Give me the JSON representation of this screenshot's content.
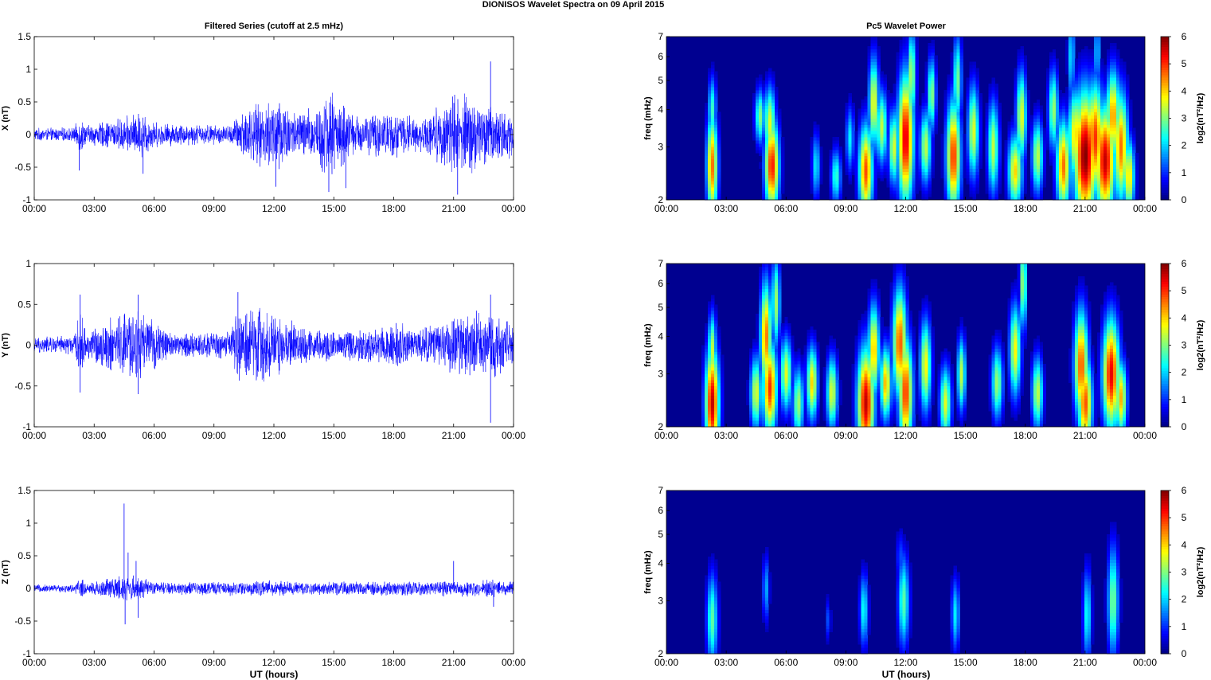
{
  "title": "DIONISOS Wavelet Spectra on 09 April     2015",
  "left_title": "Filtered Series (cutoff at 2.5 mHz)",
  "right_title": "Pc5 Wavelet Power",
  "xlabel": "UT (hours)",
  "colors": {
    "trace": "#0000ff",
    "spectrum_background": "#000090"
  },
  "chart_data": [
    {
      "type": "line",
      "series": [
        {
          "name": "X",
          "values": []
        }
      ],
      "ylabel": "X (nT)",
      "ylim": [
        -1,
        1.5
      ],
      "yticks": [
        "-1",
        "-0.5",
        "0",
        "0.5",
        "1",
        "1.5"
      ],
      "xlim": [
        0,
        24
      ],
      "xticks": [
        "00:00",
        "03:00",
        "06:00",
        "09:00",
        "12:00",
        "15:00",
        "18:00",
        "21:00",
        "00:00"
      ],
      "activity_envelope": [
        [
          0.0,
          0.08
        ],
        [
          2.0,
          0.09
        ],
        [
          2.3,
          0.25
        ],
        [
          2.6,
          0.12
        ],
        [
          4.5,
          0.22
        ],
        [
          5.4,
          0.3
        ],
        [
          6.2,
          0.15
        ],
        [
          9.8,
          0.12
        ],
        [
          10.5,
          0.35
        ],
        [
          11.5,
          0.4
        ],
        [
          12.2,
          0.55
        ],
        [
          13.0,
          0.3
        ],
        [
          14.0,
          0.35
        ],
        [
          14.8,
          0.6
        ],
        [
          16.0,
          0.25
        ],
        [
          18.0,
          0.3
        ],
        [
          19.5,
          0.2
        ],
        [
          21.0,
          0.55
        ],
        [
          22.0,
          0.5
        ],
        [
          23.0,
          0.35
        ],
        [
          24.0,
          0.3
        ]
      ],
      "spikes": [
        [
          2.25,
          -0.55
        ],
        [
          5.45,
          -0.6
        ],
        [
          12.1,
          -0.8
        ],
        [
          14.75,
          -0.88
        ],
        [
          15.6,
          -0.82
        ],
        [
          22.85,
          1.12
        ],
        [
          21.2,
          -0.92
        ]
      ]
    },
    {
      "type": "line",
      "series": [
        {
          "name": "Y",
          "values": []
        }
      ],
      "ylabel": "Y (nT)",
      "ylim": [
        -1,
        1
      ],
      "yticks": [
        "-1",
        "-0.5",
        "0",
        "0.5",
        "1"
      ],
      "xlim": [
        0,
        24
      ],
      "xticks": [
        "00:00",
        "03:00",
        "06:00",
        "09:00",
        "12:00",
        "15:00",
        "18:00",
        "21:00",
        "00:00"
      ],
      "activity_envelope": [
        [
          0.0,
          0.08
        ],
        [
          2.0,
          0.1
        ],
        [
          2.3,
          0.35
        ],
        [
          2.6,
          0.15
        ],
        [
          4.0,
          0.3
        ],
        [
          5.0,
          0.4
        ],
        [
          6.0,
          0.25
        ],
        [
          7.0,
          0.12
        ],
        [
          9.8,
          0.15
        ],
        [
          10.3,
          0.4
        ],
        [
          11.5,
          0.4
        ],
        [
          12.3,
          0.3
        ],
        [
          13.5,
          0.2
        ],
        [
          15.0,
          0.15
        ],
        [
          17.5,
          0.2
        ],
        [
          18.0,
          0.3
        ],
        [
          19.0,
          0.15
        ],
        [
          21.0,
          0.3
        ],
        [
          22.8,
          0.35
        ],
        [
          24.0,
          0.2
        ]
      ],
      "spikes": [
        [
          2.3,
          0.62
        ],
        [
          2.3,
          -0.58
        ],
        [
          5.2,
          -0.6
        ],
        [
          5.2,
          0.62
        ],
        [
          10.2,
          0.65
        ],
        [
          22.85,
          -0.95
        ],
        [
          22.85,
          0.62
        ]
      ]
    },
    {
      "type": "line",
      "series": [
        {
          "name": "Z",
          "values": []
        }
      ],
      "ylabel": "Z (nT)",
      "ylim": [
        -1,
        1.5
      ],
      "yticks": [
        "-1",
        "-0.5",
        "0",
        "0.5",
        "1",
        "1.5"
      ],
      "xlim": [
        0,
        24
      ],
      "xticks": [
        "00:00",
        "03:00",
        "06:00",
        "09:00",
        "12:00",
        "15:00",
        "18:00",
        "21:00",
        "00:00"
      ],
      "activity_envelope": [
        [
          0.0,
          0.05
        ],
        [
          2.0,
          0.05
        ],
        [
          2.3,
          0.15
        ],
        [
          2.6,
          0.07
        ],
        [
          4.4,
          0.18
        ],
        [
          5.2,
          0.15
        ],
        [
          6.0,
          0.08
        ],
        [
          10.0,
          0.09
        ],
        [
          12.0,
          0.1
        ],
        [
          14.0,
          0.08
        ],
        [
          21.0,
          0.1
        ],
        [
          22.5,
          0.12
        ],
        [
          24.0,
          0.1
        ]
      ],
      "spikes": [
        [
          4.5,
          1.3
        ],
        [
          4.55,
          -0.55
        ],
        [
          4.7,
          0.55
        ],
        [
          5.2,
          -0.45
        ],
        [
          5.1,
          0.42
        ],
        [
          23.0,
          -0.28
        ],
        [
          21.0,
          0.42
        ]
      ]
    },
    {
      "type": "heatmap",
      "ylabel": "freq (mHz)",
      "yscale": "log",
      "ylim": [
        2,
        7
      ],
      "yticks": [
        "2",
        "3",
        "4",
        "5",
        "6",
        "7"
      ],
      "xlim": [
        0,
        24
      ],
      "xticks": [
        "00:00",
        "03:00",
        "06:00",
        "09:00",
        "12:00",
        "15:00",
        "18:00",
        "21:00",
        "00:00"
      ],
      "colorbar": {
        "label": "log2(nT²/Hz)",
        "range": [
          0,
          6
        ],
        "ticks": [
          "0",
          "1",
          "2",
          "3",
          "4",
          "5",
          "6"
        ]
      },
      "blobs": [
        [
          2.3,
          2.6,
          0.2,
          0.28,
          4.6
        ],
        [
          2.3,
          4.0,
          0.15,
          0.18,
          2.6
        ],
        [
          4.7,
          3.8,
          0.18,
          0.15,
          3.0
        ],
        [
          5.3,
          2.6,
          0.25,
          0.25,
          5.2
        ],
        [
          5.2,
          3.6,
          0.2,
          0.2,
          3.6
        ],
        [
          7.5,
          2.6,
          0.15,
          0.18,
          2.2
        ],
        [
          8.5,
          2.4,
          0.18,
          0.15,
          2.6
        ],
        [
          9.2,
          3.2,
          0.15,
          0.18,
          2.2
        ],
        [
          10.0,
          2.5,
          0.25,
          0.25,
          4.8
        ],
        [
          10.4,
          4.2,
          0.18,
          0.25,
          3.8
        ],
        [
          10.8,
          3.5,
          0.2,
          0.2,
          3.4
        ],
        [
          11.4,
          3.0,
          0.18,
          0.2,
          3.6
        ],
        [
          12.0,
          3.2,
          0.28,
          0.35,
          5.5
        ],
        [
          12.3,
          5.2,
          0.15,
          0.25,
          3.4
        ],
        [
          13.0,
          3.0,
          0.2,
          0.2,
          3.4
        ],
        [
          13.3,
          4.5,
          0.15,
          0.2,
          3.2
        ],
        [
          14.4,
          2.8,
          0.25,
          0.3,
          5.0
        ],
        [
          14.6,
          5.0,
          0.15,
          0.25,
          3.0
        ],
        [
          15.4,
          3.4,
          0.2,
          0.25,
          3.6
        ],
        [
          16.4,
          3.0,
          0.2,
          0.25,
          3.4
        ],
        [
          17.5,
          2.5,
          0.25,
          0.2,
          4.0
        ],
        [
          17.8,
          3.8,
          0.18,
          0.25,
          3.6
        ],
        [
          18.6,
          2.8,
          0.2,
          0.2,
          3.4
        ],
        [
          19.4,
          4.0,
          0.18,
          0.22,
          3.2
        ],
        [
          19.9,
          2.6,
          0.25,
          0.25,
          4.6
        ],
        [
          20.5,
          3.3,
          0.25,
          0.25,
          4.0
        ],
        [
          21.0,
          2.8,
          0.4,
          0.35,
          6.0
        ],
        [
          21.5,
          3.2,
          0.3,
          0.3,
          5.0
        ],
        [
          22.0,
          2.7,
          0.35,
          0.3,
          5.6
        ],
        [
          22.4,
          3.8,
          0.25,
          0.25,
          4.4
        ],
        [
          22.8,
          3.0,
          0.25,
          0.3,
          4.6
        ],
        [
          23.2,
          2.4,
          0.2,
          0.2,
          4.0
        ],
        [
          20.3,
          6.0,
          0.12,
          0.25,
          2.2
        ],
        [
          21.6,
          6.2,
          0.12,
          0.2,
          2.0
        ]
      ]
    },
    {
      "type": "heatmap",
      "ylabel": "freq (mHz)",
      "yscale": "log",
      "ylim": [
        2,
        7
      ],
      "yticks": [
        "2",
        "3",
        "4",
        "5",
        "6",
        "7"
      ],
      "xlim": [
        0,
        24
      ],
      "xticks": [
        "00:00",
        "03:00",
        "06:00",
        "09:00",
        "12:00",
        "15:00",
        "18:00",
        "21:00",
        "00:00"
      ],
      "colorbar": {
        "label": "log2(nT²/Hz)",
        "range": [
          0,
          6
        ],
        "ticks": [
          "0",
          "1",
          "2",
          "3",
          "4",
          "5",
          "6"
        ]
      },
      "blobs": [
        [
          2.3,
          2.4,
          0.25,
          0.3,
          5.6
        ],
        [
          2.3,
          3.6,
          0.15,
          0.2,
          3.4
        ],
        [
          4.5,
          2.6,
          0.2,
          0.2,
          3.6
        ],
        [
          5.0,
          4.0,
          0.2,
          0.3,
          4.6
        ],
        [
          5.2,
          2.7,
          0.25,
          0.25,
          5.0
        ],
        [
          5.5,
          5.2,
          0.15,
          0.25,
          3.2
        ],
        [
          6.0,
          3.0,
          0.2,
          0.2,
          3.6
        ],
        [
          6.6,
          2.4,
          0.2,
          0.2,
          3.2
        ],
        [
          7.3,
          2.8,
          0.2,
          0.2,
          4.0
        ],
        [
          8.3,
          2.6,
          0.2,
          0.2,
          3.6
        ],
        [
          10.0,
          2.4,
          0.3,
          0.3,
          5.6
        ],
        [
          10.4,
          3.6,
          0.2,
          0.25,
          4.2
        ],
        [
          11.0,
          2.8,
          0.2,
          0.2,
          4.2
        ],
        [
          11.7,
          3.8,
          0.25,
          0.3,
          4.8
        ],
        [
          12.0,
          2.6,
          0.25,
          0.3,
          5.0
        ],
        [
          13.0,
          3.2,
          0.2,
          0.25,
          3.8
        ],
        [
          14.0,
          2.4,
          0.2,
          0.2,
          3.6
        ],
        [
          14.8,
          3.0,
          0.15,
          0.2,
          3.4
        ],
        [
          16.6,
          2.8,
          0.2,
          0.2,
          3.2
        ],
        [
          17.5,
          3.6,
          0.2,
          0.25,
          3.8
        ],
        [
          17.9,
          6.0,
          0.12,
          0.25,
          3.4
        ],
        [
          18.6,
          2.6,
          0.2,
          0.2,
          3.4
        ],
        [
          20.8,
          3.2,
          0.25,
          0.3,
          4.8
        ],
        [
          21.0,
          2.4,
          0.25,
          0.25,
          4.8
        ],
        [
          22.3,
          3.0,
          0.3,
          0.3,
          5.4
        ],
        [
          22.8,
          2.5,
          0.2,
          0.2,
          4.2
        ]
      ]
    },
    {
      "type": "heatmap",
      "ylabel": "freq (mHz)",
      "yscale": "log",
      "ylim": [
        2,
        7
      ],
      "yticks": [
        "2",
        "3",
        "4",
        "5",
        "6",
        "7"
      ],
      "xlim": [
        0,
        24
      ],
      "xticks": [
        "00:00",
        "03:00",
        "06:00",
        "09:00",
        "12:00",
        "15:00",
        "18:00",
        "21:00",
        "00:00"
      ],
      "colorbar": {
        "label": "log2(nT²/Hz)",
        "range": [
          0,
          6
        ],
        "ticks": [
          "0",
          "1",
          "2",
          "3",
          "4",
          "5",
          "6"
        ]
      },
      "blobs": [
        [
          2.3,
          2.6,
          0.2,
          0.25,
          2.8
        ],
        [
          5.0,
          3.3,
          0.12,
          0.18,
          1.8
        ],
        [
          9.9,
          2.8,
          0.15,
          0.2,
          2.4
        ],
        [
          11.9,
          3.0,
          0.2,
          0.25,
          2.8
        ],
        [
          14.5,
          2.7,
          0.15,
          0.2,
          2.2
        ],
        [
          21.1,
          2.7,
          0.15,
          0.25,
          2.4
        ],
        [
          22.4,
          3.0,
          0.2,
          0.3,
          3.0
        ],
        [
          11.7,
          4.2,
          0.1,
          0.15,
          1.4
        ],
        [
          8.1,
          2.6,
          0.1,
          0.12,
          1.2
        ]
      ]
    }
  ]
}
